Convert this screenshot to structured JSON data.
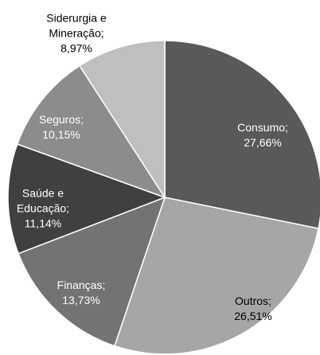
{
  "chart_data": {
    "type": "pie",
    "categories": [
      "Consumo;",
      "Outros;",
      "Finanças;",
      "Saúde e Educação;",
      "Seguros;",
      "Siderurgia e Mineração;"
    ],
    "values": [
      27.66,
      26.51,
      13.73,
      11.14,
      10.15,
      8.97
    ],
    "value_labels": [
      "27,66%",
      "26,51%",
      "13,73%",
      "11,14%",
      "10,15%",
      "8,97%"
    ],
    "colors": [
      "#595959",
      "#a6a6a6",
      "#737373",
      "#404040",
      "#8c8c8c",
      "#bfbfbf"
    ]
  }
}
